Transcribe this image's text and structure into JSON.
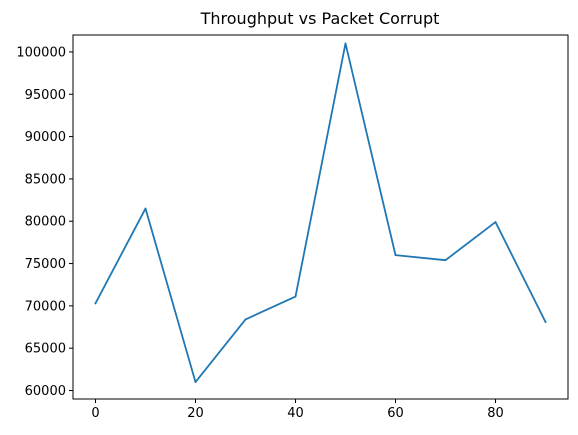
{
  "chart_data": {
    "type": "line",
    "title": "Throughput vs Packet Corrupt",
    "xlabel": "",
    "ylabel": "",
    "x": [
      0,
      10,
      20,
      30,
      40,
      50,
      60,
      70,
      80,
      90
    ],
    "series": [
      {
        "values": [
          70300,
          81500,
          61000,
          68400,
          71100,
          101000,
          76000,
          75400,
          79900,
          68100
        ]
      }
    ],
    "xlim": [
      -4.5,
      94.5
    ],
    "ylim": [
      59000,
      102000
    ],
    "xticks": [
      0,
      20,
      40,
      60,
      80
    ],
    "yticks": [
      60000,
      65000,
      70000,
      75000,
      80000,
      85000,
      90000,
      95000,
      100000
    ],
    "line_color": "#1f77b4",
    "grid": false,
    "legend": "none"
  }
}
